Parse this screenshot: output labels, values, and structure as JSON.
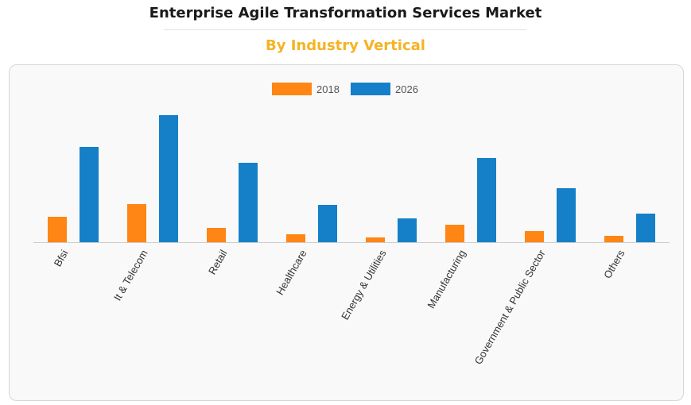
{
  "header": {
    "title": "Enterprise Agile Transformation Services Market",
    "subtitle": "By Industry Vertical"
  },
  "colors": {
    "series_2018": "#ff8514",
    "series_2026": "#1580c8",
    "subtitle": "#f5b324"
  },
  "chart_data": {
    "type": "bar",
    "categories": [
      "Bfsi",
      "It & Telecom",
      "Retail",
      "Healthcare",
      "Energy & Utilities",
      "Manufacturing",
      "Government & Public Sector",
      "Others"
    ],
    "series": [
      {
        "name": "2018",
        "values": [
          32,
          48,
          18,
          10,
          6,
          22,
          14,
          8
        ]
      },
      {
        "name": "2026",
        "values": [
          120,
          160,
          100,
          47,
          30,
          106,
          68,
          36
        ]
      }
    ],
    "ylim": [
      0,
      165
    ],
    "legend_position": "top-center",
    "grid": false,
    "xlabel": "",
    "ylabel": ""
  }
}
